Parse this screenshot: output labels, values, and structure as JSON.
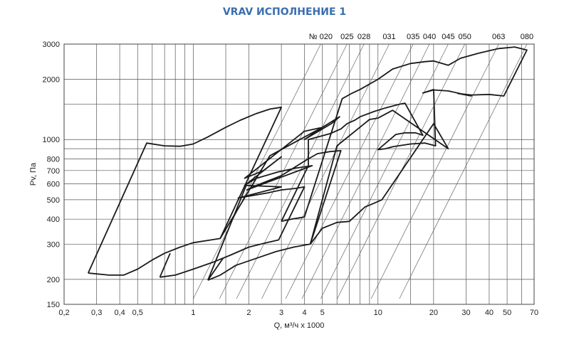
{
  "chart_data": {
    "type": "line",
    "title": "VRAV ИСПОЛНЕНИЕ 1",
    "xlabel": "Q, м³/ч x 1000",
    "ylabel": "Pv, Па",
    "xscale": "log",
    "yscale": "log",
    "xlim": [
      0.2,
      70
    ],
    "ylim": [
      150,
      3000
    ],
    "x_ticks": [
      0.2,
      0.3,
      0.4,
      0.5,
      1,
      2,
      3,
      4,
      5,
      10,
      20,
      30,
      40,
      50,
      70
    ],
    "x_tick_labels": [
      "0,2",
      "0,3",
      "0,4",
      "0,5",
      "1",
      "2",
      "3",
      "4",
      "5",
      "10",
      "20",
      "30",
      "40",
      "50",
      "70"
    ],
    "y_ticks": [
      150,
      200,
      300,
      400,
      500,
      600,
      700,
      800,
      1000,
      2000,
      3000
    ],
    "y_tick_labels": [
      "150",
      "200",
      "300",
      "400",
      "500",
      "600",
      "700",
      "800",
      "1000",
      "2000",
      "3000"
    ],
    "x_grid": [
      0.2,
      0.3,
      0.4,
      0.5,
      0.6,
      0.7,
      0.8,
      0.9,
      1,
      1.5,
      2,
      3,
      4,
      5,
      6,
      7,
      8,
      9,
      10,
      15,
      20,
      30,
      40,
      50,
      60,
      70
    ],
    "y_grid": [
      150,
      200,
      300,
      400,
      500,
      600,
      700,
      800,
      900,
      1000,
      1500,
      2000,
      3000
    ],
    "sizes": [
      {
        "label": "№ 020",
        "x": 4.9
      },
      {
        "label": "025",
        "x": 6.8
      },
      {
        "label": "028",
        "x": 8.4
      },
      {
        "label": "031",
        "x": 11.5
      },
      {
        "label": "035",
        "x": 15.5
      },
      {
        "label": "040",
        "x": 19
      },
      {
        "label": "045",
        "x": 24
      },
      {
        "label": "050",
        "x": 29.5
      },
      {
        "label": "063",
        "x": 45
      },
      {
        "label": "080",
        "x": 64
      }
    ],
    "series": [
      {
        "points": [
          [
            0.27,
            215
          ],
          [
            0.35,
            210
          ],
          [
            0.42,
            210
          ],
          [
            0.5,
            225
          ],
          [
            0.6,
            250
          ],
          [
            0.7,
            270
          ],
          [
            0.85,
            290
          ],
          [
            1.0,
            305
          ],
          [
            1.25,
            315
          ],
          [
            1.4,
            320
          ],
          [
            3.0,
            1450
          ],
          [
            2.6,
            1420
          ],
          [
            2.2,
            1350
          ],
          [
            1.8,
            1250
          ],
          [
            1.5,
            1150
          ],
          [
            1.2,
            1030
          ],
          [
            1.0,
            950
          ],
          [
            0.85,
            925
          ],
          [
            0.7,
            930
          ],
          [
            0.56,
            960
          ],
          [
            0.27,
            215
          ]
        ]
      },
      {
        "points": [
          [
            0.66,
            205
          ],
          [
            0.8,
            210
          ],
          [
            1.0,
            225
          ],
          [
            1.3,
            245
          ],
          [
            1.6,
            265
          ],
          [
            2.0,
            290
          ],
          [
            2.5,
            305
          ],
          [
            2.9,
            315
          ],
          [
            4.0,
            580
          ],
          [
            3.6,
            570
          ],
          [
            3.0,
            560
          ],
          [
            2.5,
            540
          ],
          [
            1.75,
            510
          ],
          [
            3.0,
            580
          ],
          [
            1.9,
            590
          ],
          [
            3.0,
            820
          ],
          [
            2.4,
            700
          ],
          [
            1.9,
            640
          ],
          [
            4.0,
            1100
          ],
          [
            5.0,
            1150
          ],
          [
            6.2,
            1300
          ],
          [
            5.6,
            1200
          ],
          [
            4.0,
            1000
          ],
          [
            5.0,
            1150
          ],
          [
            2.6,
            830
          ],
          [
            1.4,
            320
          ]
        ]
      },
      {
        "points": [
          [
            0.66,
            205
          ],
          [
            0.75,
            270
          ]
        ]
      },
      {
        "points": [
          [
            1.2,
            198
          ],
          [
            1.4,
            210
          ],
          [
            1.7,
            235
          ],
          [
            2.2,
            255
          ],
          [
            2.8,
            275
          ],
          [
            3.5,
            290
          ],
          [
            4.3,
            300
          ],
          [
            6.3,
            880
          ],
          [
            5.5,
            870
          ],
          [
            4.7,
            850
          ],
          [
            4.0,
            780
          ],
          [
            3.0,
            660
          ],
          [
            2.2,
            590
          ],
          [
            1.95,
            560
          ],
          [
            4.4,
            740
          ],
          [
            3.6,
            720
          ],
          [
            2.9,
            690
          ],
          [
            2.2,
            640
          ],
          [
            1.95,
            600
          ],
          [
            1.2,
            198
          ]
        ]
      },
      {
        "points": [
          [
            1.2,
            198
          ],
          [
            1.45,
            255
          ]
        ]
      },
      {
        "points": [
          [
            3.0,
            390
          ],
          [
            3.4,
            400
          ],
          [
            4.0,
            410
          ],
          [
            6.4,
            1600
          ],
          [
            7.2,
            1700
          ],
          [
            8.0,
            1780
          ],
          [
            10,
            2000
          ],
          [
            12,
            2250
          ],
          [
            15,
            2400
          ],
          [
            18,
            2450
          ],
          [
            20,
            2470
          ],
          [
            24,
            2350
          ],
          [
            28,
            2550
          ],
          [
            35,
            2700
          ],
          [
            45,
            2850
          ],
          [
            55,
            2900
          ],
          [
            64,
            2800
          ],
          [
            48,
            1650
          ],
          [
            40,
            1680
          ],
          [
            32,
            1670
          ],
          [
            27,
            1700
          ],
          [
            32,
            1650
          ],
          [
            24,
            1750
          ],
          [
            20,
            1770
          ],
          [
            17.5,
            1710
          ],
          [
            20,
            1780
          ],
          [
            20.5,
            930
          ],
          [
            18,
            960
          ],
          [
            15,
            950
          ],
          [
            12,
            920
          ],
          [
            11,
            900
          ],
          [
            10,
            890
          ],
          [
            12.5,
            1060
          ],
          [
            14,
            1080
          ],
          [
            16,
            1080
          ],
          [
            17.5,
            1050
          ],
          [
            14,
            1520
          ],
          [
            13,
            1500
          ],
          [
            11,
            1440
          ],
          [
            9.5,
            1380
          ],
          [
            8,
            1300
          ],
          [
            7.5,
            1250
          ],
          [
            6.8,
            1200
          ],
          [
            6.3,
            1130
          ],
          [
            5.5,
            1070
          ],
          [
            4.2,
            1000
          ],
          [
            4.2,
            740
          ],
          [
            3.0,
            390
          ]
        ]
      },
      {
        "points": [
          [
            4.3,
            300
          ],
          [
            5.0,
            360
          ],
          [
            6.0,
            385
          ],
          [
            7.0,
            390
          ],
          [
            8.5,
            460
          ],
          [
            9.5,
            480
          ],
          [
            10.5,
            500
          ],
          [
            20,
            1200
          ],
          [
            24,
            900
          ],
          [
            12,
            1400
          ],
          [
            10,
            1280
          ],
          [
            9,
            1260
          ],
          [
            6.0,
            930
          ],
          [
            4.3,
            300
          ]
        ]
      }
    ]
  }
}
